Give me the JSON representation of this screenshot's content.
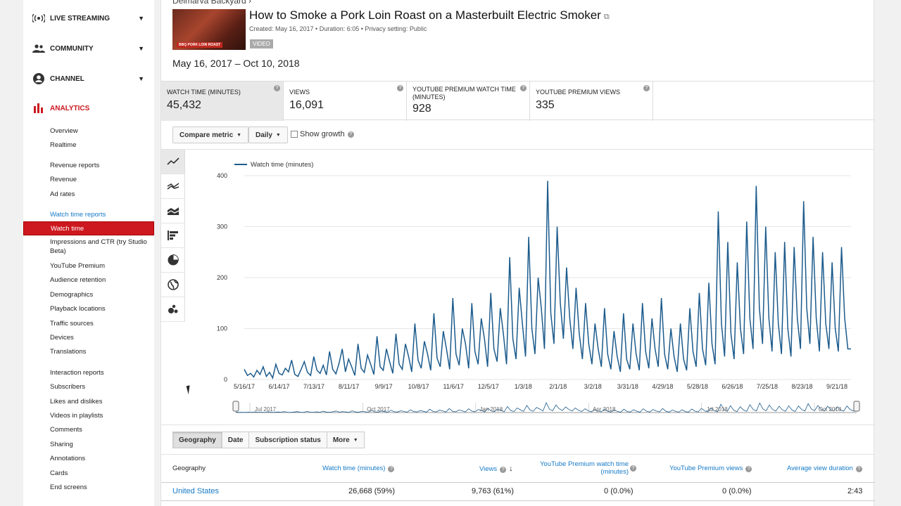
{
  "sidebar": {
    "sections": [
      {
        "label": "LIVE STREAMING",
        "icon": "live-streaming-icon"
      },
      {
        "label": "COMMUNITY",
        "icon": "community-icon"
      },
      {
        "label": "CHANNEL",
        "icon": "channel-icon"
      },
      {
        "label": "ANALYTICS",
        "icon": "analytics-icon"
      }
    ],
    "links": [
      "Overview",
      "Realtime",
      "Revenue reports",
      "Revenue",
      "Ad rates",
      "Watch time reports",
      "Watch time",
      "Impressions and CTR (try Studio Beta)",
      "YouTube Premium",
      "Audience retention",
      "Demographics",
      "Playback locations",
      "Traffic sources",
      "Devices",
      "Translations",
      "Interaction reports",
      "Subscribers",
      "Likes and dislikes",
      "Videos in playlists",
      "Comments",
      "Sharing",
      "Annotations",
      "Cards",
      "End screens"
    ]
  },
  "video": {
    "breadcrumb": "Delmarva Backyard ›",
    "thumb_text": "BBQ PORK LOIN ROAST",
    "title": "How to Smoke a Pork Loin Roast on a Masterbuilt Electric Smoker",
    "meta": "Created: May 16, 2017  •  Duration: 6:05  •  Privacy setting: Public",
    "badge": "VIDEO"
  },
  "date_range": "May 16, 2017 – Oct 10, 2018",
  "metrics": [
    {
      "label": "WATCH TIME (MINUTES)",
      "value": "45,432"
    },
    {
      "label": "VIEWS",
      "value": "16,091"
    },
    {
      "label": "YOUTUBE PREMIUM WATCH TIME (MINUTES)",
      "value": "928"
    },
    {
      "label": "YOUTUBE PREMIUM VIEWS",
      "value": "335"
    }
  ],
  "controls": {
    "compare": "Compare metric",
    "interval": "Daily",
    "growth": "Show growth"
  },
  "chart_data": {
    "type": "line",
    "series": [
      {
        "name": "Watch time (minutes)",
        "values": [
          20,
          8,
          12,
          5,
          18,
          10,
          25,
          6,
          14,
          3,
          30,
          12,
          9,
          22,
          15,
          38,
          10,
          6,
          20,
          35,
          14,
          8,
          45,
          18,
          12,
          28,
          9,
          55,
          20,
          11,
          32,
          60,
          15,
          40,
          25,
          8,
          70,
          22,
          14,
          48,
          30,
          10,
          85,
          25,
          18,
          60,
          35,
          12,
          90,
          30,
          20,
          70,
          45,
          15,
          110,
          38,
          22,
          75,
          50,
          18,
          130,
          42,
          25,
          95,
          60,
          20,
          160,
          50,
          28,
          100,
          70,
          22,
          150,
          55,
          30,
          120,
          80,
          25,
          170,
          60,
          35,
          140,
          90,
          30,
          240,
          80,
          40,
          180,
          110,
          45,
          280,
          100,
          50,
          200,
          140,
          60,
          390,
          130,
          70,
          300,
          150,
          80,
          220,
          120,
          60,
          180,
          90,
          40,
          150,
          70,
          30,
          110,
          60,
          25,
          140,
          50,
          20,
          95,
          45,
          15,
          130,
          40,
          20,
          110,
          50,
          18,
          150,
          55,
          22,
          120,
          60,
          25,
          160,
          50,
          20,
          100,
          45,
          15,
          110,
          40,
          18,
          140,
          55,
          25,
          170,
          60,
          28,
          190,
          70,
          30,
          330,
          110,
          45,
          270,
          90,
          40,
          230,
          100,
          50,
          310,
          120,
          60,
          380,
          140,
          70,
          300,
          120,
          55,
          250,
          110,
          50,
          270,
          100,
          45,
          260,
          120,
          60,
          350,
          140,
          70,
          280,
          120,
          55,
          250,
          110,
          60,
          230,
          100,
          55,
          260,
          120,
          60,
          60
        ]
      }
    ],
    "x_ticks": [
      "5/16/17",
      "6/14/17",
      "7/13/17",
      "8/11/17",
      "9/9/17",
      "10/8/17",
      "11/6/17",
      "12/5/17",
      "1/3/18",
      "2/1/18",
      "3/2/18",
      "3/31/18",
      "4/29/18",
      "5/28/18",
      "6/26/18",
      "7/25/18",
      "8/23/18",
      "9/21/18"
    ],
    "y_ticks": [
      "0",
      "100",
      "200",
      "300",
      "400"
    ],
    "ylim": [
      0,
      400
    ],
    "navigator_labels": [
      "Jul 2017",
      "Oct 2017",
      "Jan 2018",
      "Apr 2018",
      "Jul 2018",
      "Oct 2018"
    ],
    "line_color": "#1c5b8c"
  },
  "report_tabs": [
    "Geography",
    "Date",
    "Subscription status",
    "More"
  ],
  "table": {
    "headers": [
      "Geography",
      "Watch time (minutes)",
      "Views",
      "YouTube Premium watch time (minutes)",
      "YouTube Premium views",
      "Average view duration"
    ],
    "rows": [
      {
        "geo": "United States",
        "watch": "26,668",
        "watch_pct": "(59%)",
        "views": "9,763",
        "views_pct": "(61%)",
        "prem_watch": "0",
        "prem_watch_pct": "(0.0%)",
        "prem_views": "0",
        "prem_views_pct": "(0.0%)",
        "avd": "2:43"
      }
    ]
  },
  "colors": {
    "accent": "#cc181e",
    "link": "#167ac6"
  }
}
